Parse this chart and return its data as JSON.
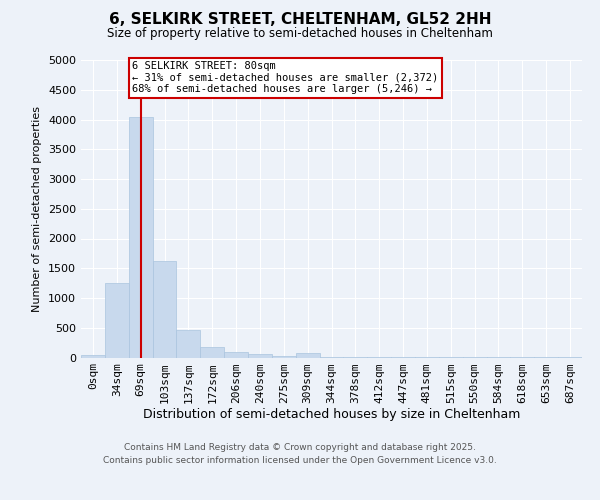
{
  "title1": "6, SELKIRK STREET, CHELTENHAM, GL52 2HH",
  "title2": "Size of property relative to semi-detached houses in Cheltenham",
  "xlabel": "Distribution of semi-detached houses by size in Cheltenham",
  "ylabel": "Number of semi-detached properties",
  "bins": [
    "0sqm",
    "34sqm",
    "69sqm",
    "103sqm",
    "137sqm",
    "172sqm",
    "206sqm",
    "240sqm",
    "275sqm",
    "309sqm",
    "344sqm",
    "378sqm",
    "412sqm",
    "447sqm",
    "481sqm",
    "515sqm",
    "550sqm",
    "584sqm",
    "618sqm",
    "653sqm",
    "687sqm"
  ],
  "values": [
    50,
    1250,
    4050,
    1620,
    460,
    180,
    90,
    55,
    30,
    80,
    10,
    5,
    5,
    3,
    2,
    2,
    1,
    1,
    1,
    1,
    1
  ],
  "bar_color": "#c8d9ed",
  "bar_edge_color": "#aac4df",
  "redline_label": "6 SELKIRK STREET: 80sqm",
  "annotation_smaller": "← 31% of semi-detached houses are smaller (2,372)",
  "annotation_larger": "68% of semi-detached houses are larger (5,246) →",
  "ylim": [
    0,
    5000
  ],
  "yticks": [
    0,
    500,
    1000,
    1500,
    2000,
    2500,
    3000,
    3500,
    4000,
    4500,
    5000
  ],
  "footnote1": "Contains HM Land Registry data © Crown copyright and database right 2025.",
  "footnote2": "Contains public sector information licensed under the Open Government Licence v3.0.",
  "bg_color": "#edf2f9",
  "grid_color": "#ffffff",
  "red_color": "#cc0000"
}
